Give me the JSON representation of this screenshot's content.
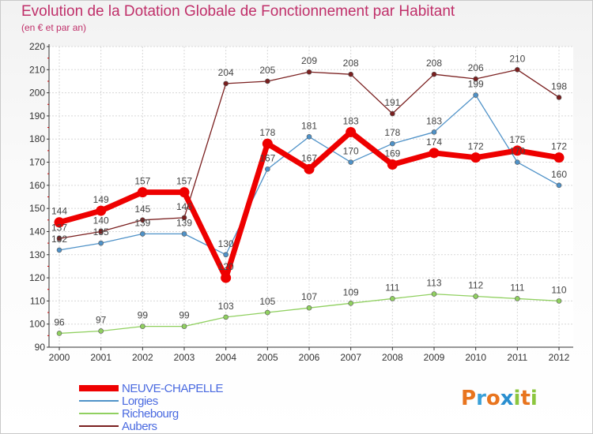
{
  "title": "Evolution de la Dotation Globale de Fonctionnement par Habitant",
  "subtitle": "(en € et par an)",
  "logo": {
    "text": "Proxiti",
    "letters": [
      "P",
      "r",
      "o",
      "x",
      "i",
      "t",
      "i"
    ],
    "colors": [
      "#e8741e",
      "#3aa0d8",
      "#e8741e",
      "#2a8fd0",
      "#8cc63e",
      "#e8741e",
      "#8cc63e"
    ]
  },
  "chart_data": {
    "type": "line",
    "title": "Evolution de la Dotation Globale de Fonctionnement par Habitant",
    "subtitle": "(en € et par an)",
    "x": [
      2000,
      2001,
      2002,
      2003,
      2004,
      2005,
      2006,
      2007,
      2008,
      2009,
      2010,
      2011,
      2012
    ],
    "ylim": [
      90,
      220
    ],
    "yticks": [
      90,
      100,
      110,
      120,
      130,
      140,
      150,
      160,
      170,
      180,
      190,
      200,
      210,
      220
    ],
    "grid": true,
    "legend_position": "bottom-left",
    "series": [
      {
        "name": "Aubers",
        "color": "#7a1f1f",
        "values": [
          137,
          140,
          145,
          146,
          204,
          205,
          209,
          208,
          191,
          208,
          206,
          210,
          198
        ],
        "labels": [
          "137",
          "140",
          "145",
          "146",
          "204",
          "205",
          "209",
          "208",
          "191",
          "208",
          "206",
          "210",
          "198"
        ]
      },
      {
        "name": "Lorgies",
        "color": "#4f92c8",
        "values": [
          132,
          135,
          139,
          139,
          130,
          167,
          181,
          170,
          178,
          183,
          199,
          170,
          160
        ],
        "labels": [
          "132",
          "135",
          "139",
          "139",
          "130",
          "167",
          "181",
          "170",
          "178",
          "183",
          "199",
          "170",
          "160"
        ]
      },
      {
        "name": "Richebourg",
        "color": "#90d060",
        "values": [
          96,
          97,
          99,
          99,
          103,
          105,
          107,
          109,
          111,
          113,
          112,
          111,
          110
        ],
        "labels": [
          "96",
          "97",
          "99",
          "99",
          "103",
          "105",
          "107",
          "109",
          "111",
          "113",
          "112",
          "111",
          "110"
        ]
      },
      {
        "name": "NEUVE-CHAPELLE",
        "color": "#ee0000",
        "values": [
          144,
          149,
          157,
          157,
          120,
          178,
          167,
          183,
          169,
          174,
          172,
          175,
          172
        ],
        "labels": [
          "144",
          "149",
          "157",
          "157",
          "120",
          "178",
          "167",
          "183",
          "169",
          "174",
          "172",
          "175",
          "172"
        ]
      }
    ],
    "legend_order": [
      "NEUVE-CHAPELLE",
      "Lorgies",
      "Richebourg",
      "Aubers"
    ]
  }
}
